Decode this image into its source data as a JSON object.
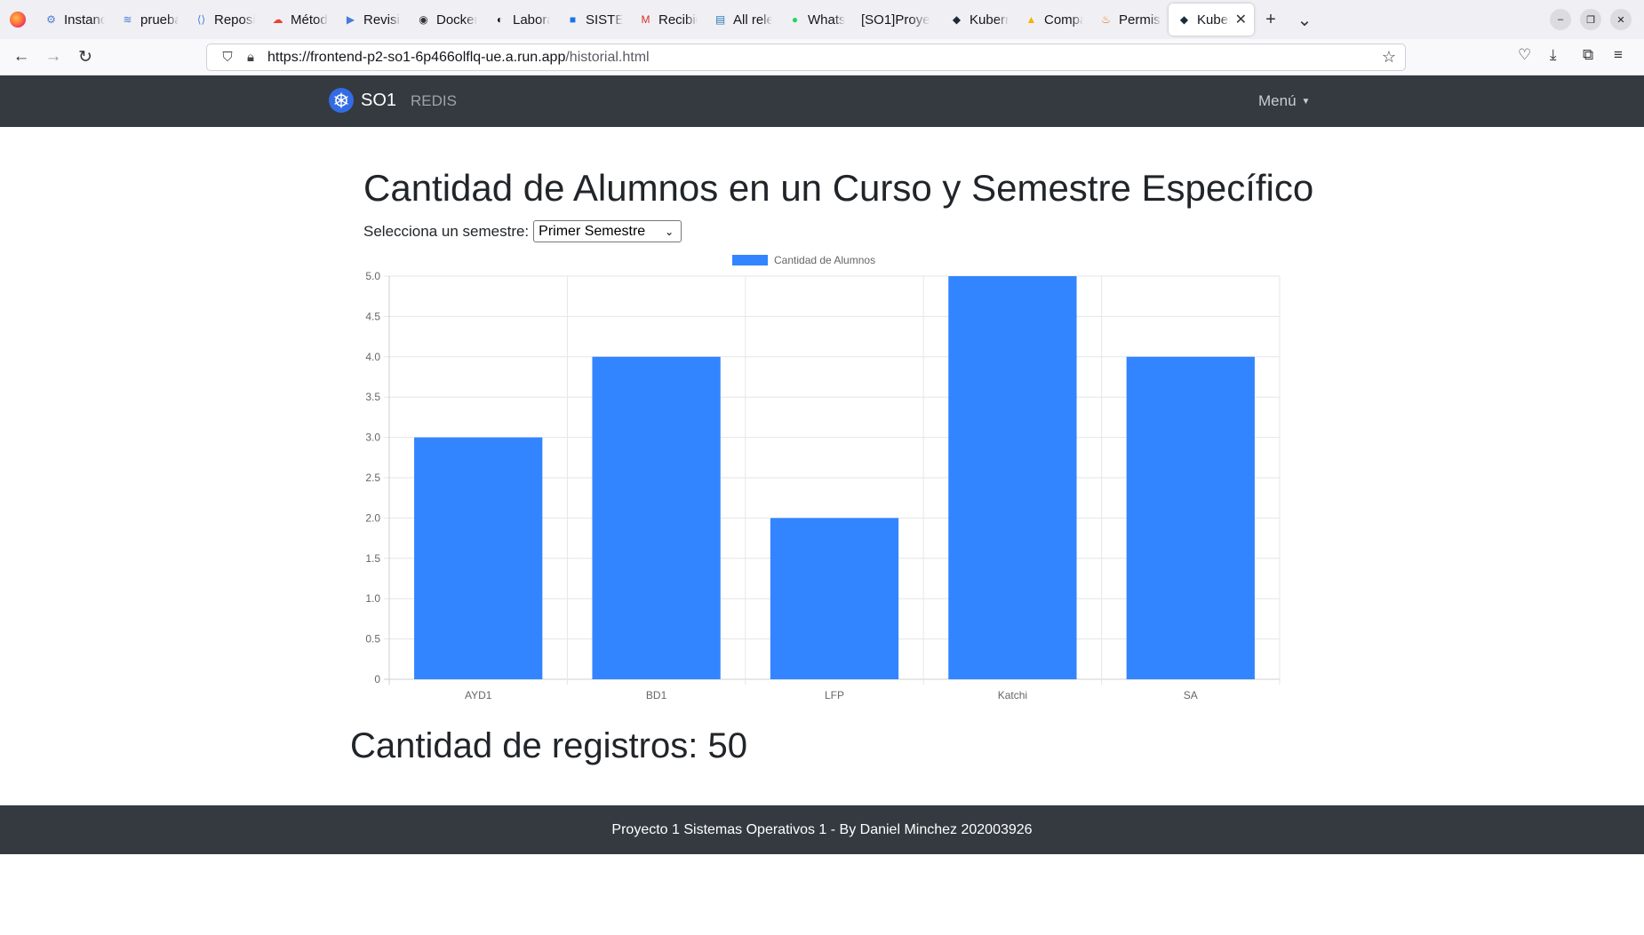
{
  "browser": {
    "tabs": [
      {
        "label": "Instanci",
        "icon": "chip-icon",
        "glyph": "⚙",
        "color": "#4a7bd6"
      },
      {
        "label": "prueba",
        "icon": "stack-icon",
        "glyph": "≋",
        "color": "#4a7bd6"
      },
      {
        "label": "Reposit",
        "icon": "repository-icon",
        "glyph": "⟨⟩",
        "color": "#4a7bd6"
      },
      {
        "label": "Método",
        "icon": "google-cloud-icon",
        "glyph": "☁",
        "color": "#e94235"
      },
      {
        "label": "Revision",
        "icon": "cloud-run-icon",
        "glyph": "▶",
        "color": "#4a7bd6"
      },
      {
        "label": "Docker I",
        "icon": "docker-icon",
        "glyph": "◉",
        "color": "#333333"
      },
      {
        "label": "Laborat",
        "icon": "github-icon",
        "glyph": "◐",
        "color": "#111111"
      },
      {
        "label": "SISTEMA",
        "icon": "contact-icon",
        "glyph": "■",
        "color": "#1a73e8"
      },
      {
        "label": "Recibido",
        "icon": "gmail-icon",
        "glyph": "M",
        "color": "#d93025"
      },
      {
        "label": "All relea",
        "icon": "release-icon",
        "glyph": "▤",
        "color": "#2b7bb9"
      },
      {
        "label": "WhatsA",
        "icon": "whatsapp-icon",
        "glyph": "●",
        "color": "#25d366"
      },
      {
        "label": "[SO1]Proye",
        "icon": "",
        "glyph": "",
        "color": "#333333"
      },
      {
        "label": "Kuberne",
        "icon": "kubernetes-icon",
        "glyph": "◆",
        "color": "#1d2b36"
      },
      {
        "label": "Compart",
        "icon": "google-drive-icon",
        "glyph": "▲",
        "color": "#f4b400"
      },
      {
        "label": "Permissi",
        "icon": "permission-icon",
        "glyph": "♨",
        "color": "#e8711a"
      },
      {
        "label": "Kuber",
        "icon": "kubernetes-icon",
        "glyph": "◆",
        "color": "#1d2b36",
        "active": true
      }
    ],
    "url_host": "https://frontend-p2-so1-6p466olflq-ue.a.run.app",
    "url_path": "/historial.html"
  },
  "nav": {
    "brand": "SO1",
    "redis": "REDIS",
    "menu": "Menú"
  },
  "main": {
    "title": "Cantidad de Alumnos en un Curso y Semestre Específico",
    "semester_label": "Selecciona un semestre:",
    "semester_value": "Primer Semestre",
    "records_text": "Cantidad de registros: 50"
  },
  "chart_data": {
    "type": "bar",
    "legend_label": "Cantidad de Alumnos",
    "legend_position": "top",
    "categories": [
      "AYD1",
      "BD1",
      "LFP",
      "Katchi",
      "SA"
    ],
    "values": [
      3,
      4,
      2,
      5,
      4
    ],
    "ylim": [
      0,
      5
    ],
    "y_ticks": [
      "0",
      "0.5",
      "1.0",
      "1.5",
      "2.0",
      "2.5",
      "3.0",
      "3.5",
      "4.0",
      "4.5",
      "5.0"
    ],
    "grid": true,
    "bar_color": "#3385ff"
  },
  "footer": {
    "text": "Proyecto 1 Sistemas Operativos 1 - By Daniel Minchez 202003926"
  }
}
